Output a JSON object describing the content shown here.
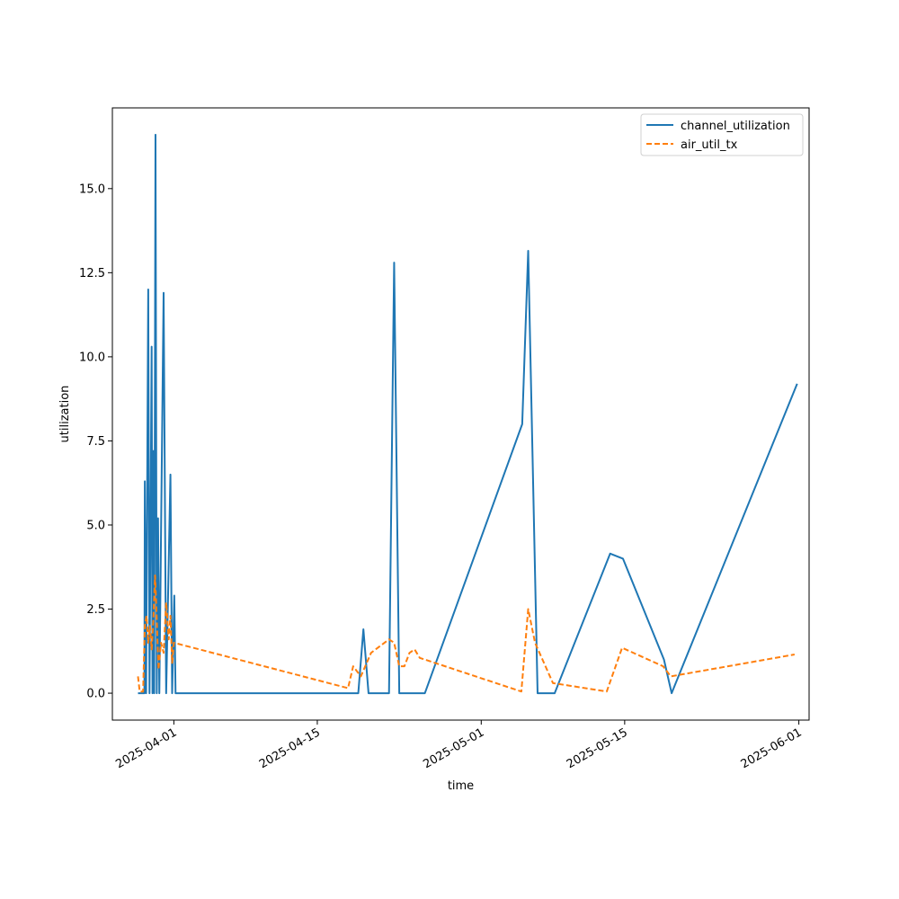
{
  "chart_data": {
    "type": "line",
    "xlabel": "time",
    "ylabel": "utilization",
    "xlim": [
      "2025-03-26",
      "2025-06-02"
    ],
    "ylim": [
      -0.8,
      17.4
    ],
    "grid": false,
    "legend_position": "top-right",
    "yticks": [
      0.0,
      2.5,
      5.0,
      7.5,
      10.0,
      12.5,
      15.0
    ],
    "ytick_labels": [
      "0.0",
      "2.5",
      "5.0",
      "7.5",
      "10.0",
      "12.5",
      "15.0"
    ],
    "xticks": [
      "2025-04-01",
      "2025-04-15",
      "2025-05-01",
      "2025-05-15",
      "2025-06-01"
    ],
    "xtick_labels": [
      "2025-04-01",
      "2025-04-15",
      "2025-05-01",
      "2025-05-15",
      "2025-06-01"
    ],
    "series": [
      {
        "name": "channel_utilization",
        "color": "#1f77b4",
        "dash": "solid",
        "points": [
          [
            "2025-03-28T12:00",
            0.0
          ],
          [
            "2025-03-29T03:00",
            0.0
          ],
          [
            "2025-03-29T04:00",
            6.3
          ],
          [
            "2025-03-29T07:00",
            0.0
          ],
          [
            "2025-03-29T12:00",
            12.0
          ],
          [
            "2025-03-29T15:00",
            0.0
          ],
          [
            "2025-03-29T20:00",
            10.3
          ],
          [
            "2025-03-29T22:00",
            0.0
          ],
          [
            "2025-03-30T00:00",
            7.2
          ],
          [
            "2025-03-30T02:00",
            0.0
          ],
          [
            "2025-03-30T05:00",
            16.6
          ],
          [
            "2025-03-30T08:00",
            0.0
          ],
          [
            "2025-03-30T11:00",
            5.2
          ],
          [
            "2025-03-30T14:00",
            0.0
          ],
          [
            "2025-03-31T00:00",
            11.9
          ],
          [
            "2025-03-31T06:00",
            0.0
          ],
          [
            "2025-03-31T16:00",
            6.5
          ],
          [
            "2025-03-31T20:00",
            0.0
          ],
          [
            "2025-04-01T01:00",
            2.9
          ],
          [
            "2025-04-01T04:00",
            0.0
          ],
          [
            "2025-04-19T00:00",
            0.0
          ],
          [
            "2025-04-19T12:00",
            1.9
          ],
          [
            "2025-04-20T00:00",
            0.0
          ],
          [
            "2025-04-22T00:00",
            0.0
          ],
          [
            "2025-04-22T12:00",
            12.8
          ],
          [
            "2025-04-23T00:00",
            0.0
          ],
          [
            "2025-04-25T12:00",
            0.0
          ],
          [
            "2025-05-05T00:00",
            8.0
          ],
          [
            "2025-05-05T14:00",
            13.15
          ],
          [
            "2025-05-06T12:00",
            0.0
          ],
          [
            "2025-05-08T04:00",
            0.0
          ],
          [
            "2025-05-13T14:00",
            4.15
          ],
          [
            "2025-05-14T20:00",
            4.0
          ],
          [
            "2025-05-18T20:00",
            1.0
          ],
          [
            "2025-05-19T14:00",
            0.0
          ],
          [
            "2025-05-31T20:00",
            9.2
          ]
        ]
      },
      {
        "name": "air_util_tx",
        "color": "#ff7f0e",
        "dash": "6,3",
        "points": [
          [
            "2025-03-28T12:00",
            0.5
          ],
          [
            "2025-03-28T16:00",
            0.05
          ],
          [
            "2025-03-29T00:00",
            0.05
          ],
          [
            "2025-03-29T04:00",
            2.0
          ],
          [
            "2025-03-29T08:00",
            2.3
          ],
          [
            "2025-03-29T12:00",
            1.5
          ],
          [
            "2025-03-29T16:00",
            2.0
          ],
          [
            "2025-03-29T20:00",
            1.3
          ],
          [
            "2025-03-30T00:00",
            2.2
          ],
          [
            "2025-03-30T04:00",
            3.5
          ],
          [
            "2025-03-30T08:00",
            2.2
          ],
          [
            "2025-03-30T12:00",
            0.7
          ],
          [
            "2025-03-30T18:00",
            1.5
          ],
          [
            "2025-03-31T00:00",
            1.2
          ],
          [
            "2025-03-31T06:00",
            2.7
          ],
          [
            "2025-03-31T12:00",
            1.6
          ],
          [
            "2025-03-31T16:00",
            2.3
          ],
          [
            "2025-03-31T20:00",
            0.9
          ],
          [
            "2025-04-01T00:00",
            1.5
          ],
          [
            "2025-04-18T00:00",
            0.15
          ],
          [
            "2025-04-18T12:00",
            0.8
          ],
          [
            "2025-04-19T06:00",
            0.5
          ],
          [
            "2025-04-20T06:00",
            1.2
          ],
          [
            "2025-04-22T00:00",
            1.6
          ],
          [
            "2025-04-22T12:00",
            1.5
          ],
          [
            "2025-04-23T00:00",
            0.8
          ],
          [
            "2025-04-23T12:00",
            0.8
          ],
          [
            "2025-04-24T00:00",
            1.2
          ],
          [
            "2025-04-24T12:00",
            1.3
          ],
          [
            "2025-04-25T00:00",
            1.05
          ],
          [
            "2025-05-04T22:00",
            0.05
          ],
          [
            "2025-05-05T14:00",
            2.5
          ],
          [
            "2025-05-06T06:00",
            1.5
          ],
          [
            "2025-05-08T00:00",
            0.3
          ],
          [
            "2025-05-13T06:00",
            0.05
          ],
          [
            "2025-05-14T18:00",
            1.35
          ],
          [
            "2025-05-18T18:00",
            0.8
          ],
          [
            "2025-05-19T12:00",
            0.5
          ],
          [
            "2025-05-31T14:00",
            1.15
          ]
        ]
      }
    ]
  }
}
